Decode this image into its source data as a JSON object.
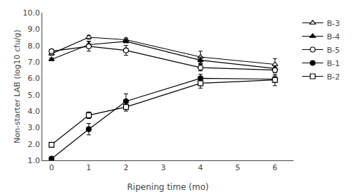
{
  "chart_data": {
    "type": "line",
    "xlabel": "Ripening time (mo)",
    "ylabel": "Non-starter LAB (log10 cfu/g)",
    "x": [
      0,
      1,
      2,
      4,
      6
    ],
    "series": [
      {
        "name": "B-3",
        "values": [
          7.5,
          8.5,
          8.35,
          7.3,
          6.85
        ],
        "yerr": [
          0.1,
          0.12,
          0.1,
          0.35,
          0.35
        ],
        "marker": "triangle-up-open",
        "color": "black"
      },
      {
        "name": "B-4",
        "values": [
          7.15,
          8.05,
          8.25,
          7.1,
          6.6
        ],
        "yerr": [
          0.08,
          0.2,
          0.08,
          0.2,
          0.15
        ],
        "marker": "triangle-up",
        "color": "black"
      },
      {
        "name": "B-5",
        "values": [
          7.65,
          7.95,
          7.7,
          6.65,
          6.5
        ],
        "yerr": [
          0.08,
          0.3,
          0.3,
          0.2,
          0.15
        ],
        "marker": "circle-open",
        "color": "black"
      },
      {
        "name": "B-1",
        "values": [
          1.1,
          2.9,
          4.6,
          6.0,
          5.95
        ],
        "yerr": [
          0.05,
          0.35,
          0.45,
          0.25,
          0.2
        ],
        "marker": "circle",
        "color": "black"
      },
      {
        "name": "B-2",
        "values": [
          1.95,
          3.75,
          4.25,
          5.7,
          5.9
        ],
        "yerr": [
          0.05,
          0.2,
          0.25,
          0.3,
          0.35
        ],
        "marker": "square-open",
        "color": "black"
      }
    ],
    "xlim": [
      -0.25,
      6.5
    ],
    "ylim": [
      1.0,
      10.0
    ],
    "xticks": [
      0,
      1,
      2,
      3,
      4,
      5,
      6
    ],
    "yticks": [
      {
        "value": 1.0,
        "label": "1.0"
      },
      {
        "value": 2.0,
        "label": "2.0"
      },
      {
        "value": 3.0,
        "label": "3.0"
      },
      {
        "value": 4.0,
        "label": "4.0"
      },
      {
        "value": 5.0,
        "label": "5.0"
      },
      {
        "value": 6.0,
        "label": "6.0"
      },
      {
        "value": 7.0,
        "label": "7.0"
      },
      {
        "value": 8.0,
        "label": "8.0"
      },
      {
        "value": 9.0,
        "label": "9.0"
      },
      {
        "value": 10.0,
        "label": "10.0"
      }
    ],
    "grid": false,
    "legend": "right"
  }
}
